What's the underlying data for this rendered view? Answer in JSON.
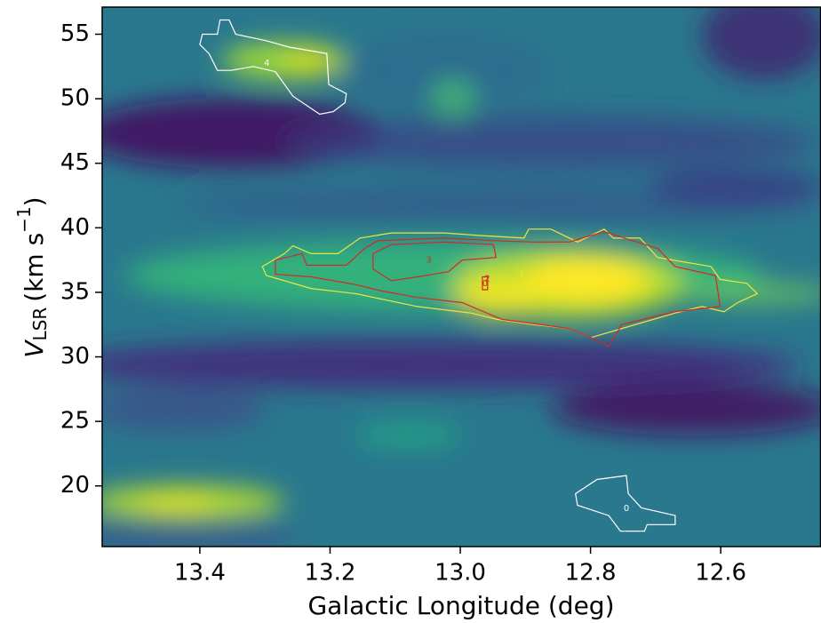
{
  "chart_data": {
    "type": "contour",
    "xlabel": "Galactic Longitude (deg)",
    "ylabel": {
      "symbol": "V",
      "subscript": "LSR",
      "unit": "(km s",
      "exponent": "−1",
      "close": ")"
    },
    "xlim": [
      13.55,
      12.446
    ],
    "ylim": [
      15.3,
      57.1
    ],
    "xticks": [
      13.4,
      13.2,
      {
        "value": 13.0,
        "label": "13.0"
      },
      12.8,
      12.6
    ],
    "yticks": [
      20,
      25,
      30,
      35,
      40,
      45,
      50,
      55
    ],
    "contours": [
      {
        "label": "4",
        "color": "#ffffff",
        "x": [
          13.396,
          13.373,
          13.369,
          13.355,
          13.345,
          13.298,
          13.263,
          13.205,
          13.202,
          13.175,
          13.177,
          13.195,
          13.216,
          13.257,
          13.284,
          13.318,
          13.352,
          13.373,
          13.386,
          13.4
        ],
        "y": [
          55.0,
          55.0,
          56.1,
          56.1,
          55.0,
          54.5,
          54.0,
          53.5,
          51.1,
          50.4,
          49.7,
          49.0,
          48.8,
          50.2,
          52.1,
          52.5,
          52.2,
          52.2,
          53.5,
          54.2
        ]
      },
      {
        "label": "0",
        "color": "#ffffff",
        "x": [
          12.823,
          12.79,
          12.745,
          12.742,
          12.722,
          12.67,
          12.67,
          12.713,
          12.717,
          12.754,
          12.772,
          12.82
        ],
        "y": [
          19.4,
          20.5,
          20.8,
          19.4,
          18.3,
          17.7,
          17.0,
          17.0,
          16.5,
          16.5,
          17.7,
          18.5
        ]
      },
      {
        "label": "1",
        "color": "#f0e442",
        "x": [
          13.304,
          13.27,
          13.257,
          13.229,
          13.188,
          13.154,
          13.106,
          13.025,
          12.97,
          12.902,
          12.895,
          12.861,
          12.82,
          12.779,
          12.765,
          12.724,
          12.697,
          12.615,
          12.601,
          12.56,
          12.544,
          12.574,
          12.595,
          12.629,
          12.67,
          12.765,
          12.799,
          12.833,
          12.888,
          12.943,
          12.984,
          13.066,
          13.161,
          13.229,
          13.298
        ],
        "y": [
          37.0,
          38.0,
          38.6,
          38.0,
          38.0,
          39.2,
          39.6,
          39.6,
          39.4,
          39.2,
          39.9,
          39.9,
          38.9,
          39.9,
          39.2,
          39.2,
          37.7,
          37.0,
          36.0,
          35.7,
          34.9,
          34.2,
          33.5,
          33.9,
          33.4,
          32.0,
          31.5,
          32.2,
          32.5,
          32.9,
          33.4,
          33.9,
          34.9,
          35.3,
          36.3
        ]
      },
      {
        "label": "2",
        "color": "#d62728",
        "x": [
          13.284,
          13.243,
          13.236,
          13.175,
          13.147,
          13.127,
          13.025,
          12.949,
          12.888,
          12.833,
          12.779,
          12.697,
          12.67,
          12.608,
          12.601,
          12.67,
          12.752,
          12.772,
          12.799,
          12.833,
          12.936,
          12.997,
          13.066,
          13.12,
          13.161,
          13.229,
          13.284
        ],
        "y": [
          37.5,
          38.0,
          37.1,
          37.1,
          38.4,
          39.0,
          39.2,
          39.0,
          38.9,
          38.9,
          39.7,
          38.4,
          37.0,
          36.3,
          33.9,
          33.5,
          32.5,
          30.8,
          31.5,
          32.2,
          32.9,
          34.2,
          34.6,
          35.1,
          35.6,
          36.2,
          36.4
        ]
      },
      {
        "label": "3",
        "color": "#d62728",
        "x": [
          13.134,
          13.106,
          13.025,
          12.949,
          12.945,
          12.997,
          13.018,
          13.066,
          13.106,
          13.134
        ],
        "y": [
          38.0,
          38.7,
          38.9,
          38.7,
          37.7,
          37.5,
          36.6,
          36.2,
          35.9,
          36.8
        ]
      },
      {
        "label": "0",
        "color": "#d62728",
        "x": [
          12.966,
          12.958,
          12.958,
          12.966
        ],
        "y": [
          36.2,
          36.2,
          35.2,
          35.2
        ]
      }
    ]
  }
}
